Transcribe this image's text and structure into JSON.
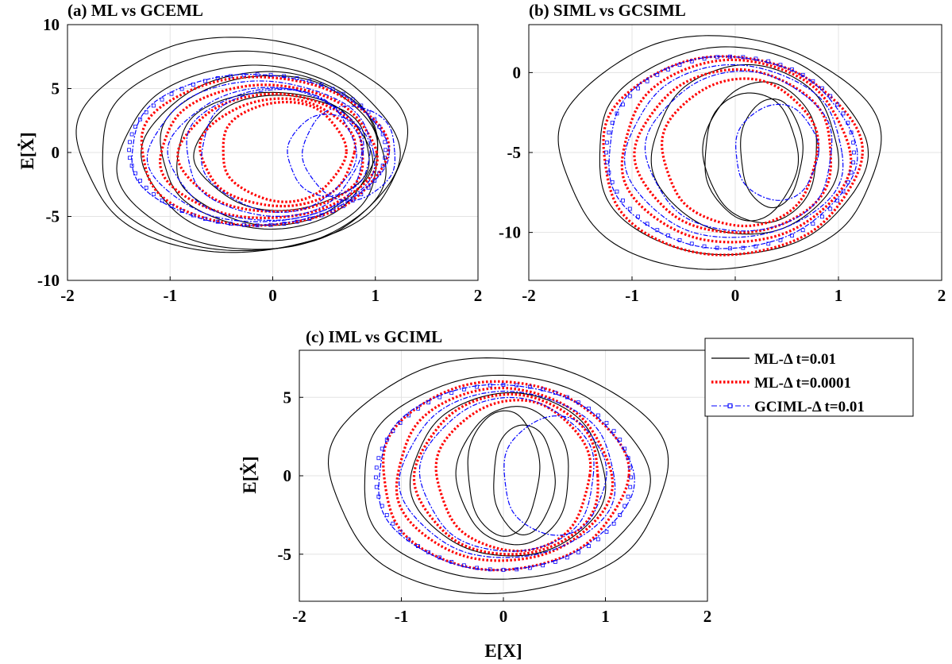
{
  "chart_data": [
    {
      "type": "line",
      "title": "(a) ML vs GCEML",
      "xlabel": "",
      "ylabel": "E[Ẋ]",
      "xlim": [
        -2,
        2
      ],
      "ylim": [
        -10,
        10
      ],
      "xticks": [
        "-2",
        "-1",
        "0",
        "1",
        "2"
      ],
      "yticks": [
        "-10",
        "-5",
        "0",
        "5",
        "10"
      ],
      "grid": true,
      "series": [
        {
          "color": "#000000",
          "style": "solid",
          "shape": "phase-portrait",
          "path": [
            {
              "cx": -0.3,
              "cy": 0.6,
              "rx": 1.6,
              "ry": 8.4
            },
            {
              "cx": -0.25,
              "cy": 0.0,
              "rx": 1.45,
              "ry": 7.8
            },
            {
              "cx": -0.2,
              "cy": -0.5,
              "rx": 1.3,
              "ry": 7.2
            },
            {
              "cx": -0.1,
              "cy": -0.3,
              "rx": 1.15,
              "ry": 6.6
            },
            {
              "cx": -0.05,
              "cy": 0.1,
              "rx": 1.05,
              "ry": 6.0
            },
            {
              "cx": 0.0,
              "cy": -0.4,
              "rx": 0.95,
              "ry": 5.2
            },
            {
              "cx": 0.1,
              "cy": 0.0,
              "rx": 0.85,
              "ry": 4.5
            }
          ]
        },
        {
          "color": "#ff0000",
          "style": "dotted",
          "shape": "phase-portrait",
          "path": [
            {
              "cx": -0.1,
              "cy": 0.1,
              "rx": 1.2,
              "ry": 5.8
            },
            {
              "cx": -0.05,
              "cy": 0.0,
              "rx": 1.05,
              "ry": 5.2
            },
            {
              "cx": 0.0,
              "cy": -0.1,
              "rx": 0.9,
              "ry": 4.6
            },
            {
              "cx": 0.05,
              "cy": 0.0,
              "rx": 0.75,
              "ry": 4.2
            },
            {
              "cx": 0.1,
              "cy": 0.1,
              "rx": 0.6,
              "ry": 3.9
            }
          ]
        },
        {
          "color": "#0000ff",
          "style": "dashdot-marker",
          "shape": "phase-portrait",
          "path": [
            {
              "cx": -0.15,
              "cy": 0.2,
              "rx": 1.25,
              "ry": 5.9
            },
            {
              "cx": -0.1,
              "cy": 0.0,
              "rx": 1.1,
              "ry": 5.5
            },
            {
              "cx": -0.05,
              "cy": -0.2,
              "rx": 0.95,
              "ry": 5.2
            },
            {
              "cx": 0.0,
              "cy": 0.0,
              "rx": 0.85,
              "ry": 5.0
            },
            {
              "cx": 0.05,
              "cy": 0.2,
              "rx": 0.75,
              "ry": 4.8
            }
          ],
          "spiral": [
            {
              "cx": 0.75,
              "cy": 0.0,
              "rx": 0.45,
              "ry": 3.7
            },
            {
              "cx": 0.55,
              "cy": -0.2,
              "rx": 0.4,
              "ry": 3.2
            }
          ]
        }
      ]
    },
    {
      "type": "line",
      "title": "(b) SIML vs GCSIML",
      "xlabel": "",
      "ylabel": "",
      "xlim": [
        -2,
        2
      ],
      "ylim": [
        -13,
        3
      ],
      "xticks": [
        "-2",
        "-1",
        "0",
        "1",
        "2"
      ],
      "yticks": [
        "-10",
        "-5",
        "0"
      ],
      "grid": true,
      "series": [
        {
          "color": "#000000",
          "style": "solid",
          "shape": "phase-portrait",
          "path": [
            {
              "cx": -0.15,
              "cy": -5.0,
              "rx": 1.55,
              "ry": 7.3
            },
            {
              "cx": -0.05,
              "cy": -5.0,
              "rx": 1.3,
              "ry": 6.5
            },
            {
              "cx": 0.1,
              "cy": -4.9,
              "rx": 0.9,
              "ry": 5.3
            },
            {
              "cx": 0.25,
              "cy": -5.0,
              "rx": 0.55,
              "ry": 4.4
            },
            {
              "cx": 0.35,
              "cy": -5.0,
              "rx": 0.3,
              "ry": 3.4
            },
            {
              "cx": 0.15,
              "cy": -5.2,
              "rx": 0.45,
              "ry": 4.0
            }
          ]
        },
        {
          "color": "#ff0000",
          "style": "dotted",
          "shape": "phase-portrait",
          "path": [
            {
              "cx": -0.05,
              "cy": -5.2,
              "rx": 1.25,
              "ry": 6.2
            },
            {
              "cx": 0.0,
              "cy": -5.0,
              "rx": 1.1,
              "ry": 5.7
            },
            {
              "cx": 0.0,
              "cy": -5.0,
              "rx": 0.95,
              "ry": 5.1
            },
            {
              "cx": 0.05,
              "cy": -5.0,
              "rx": 0.75,
              "ry": 4.6
            }
          ]
        },
        {
          "color": "#0000ff",
          "style": "dashdot-marker",
          "shape": "phase-portrait",
          "path": [
            {
              "cx": -0.05,
              "cy": -5.0,
              "rx": 1.2,
              "ry": 6.0
            },
            {
              "cx": 0.0,
              "cy": -5.0,
              "rx": 1.05,
              "ry": 5.4
            },
            {
              "cx": 0.05,
              "cy": -5.0,
              "rx": 0.9,
              "ry": 5.0
            }
          ],
          "spiral": [
            {
              "cx": 0.4,
              "cy": -5.0,
              "rx": 0.4,
              "ry": 3.0
            }
          ]
        }
      ]
    },
    {
      "type": "line",
      "title": "(c) IML vs GCIML",
      "xlabel": "E[X]",
      "ylabel": "E[Ẋ]",
      "xlim": [
        -2,
        2
      ],
      "ylim": [
        -8,
        8
      ],
      "xticks": [
        "-2",
        "-1",
        "0",
        "1",
        "2"
      ],
      "yticks": [
        "-5",
        "0",
        "5"
      ],
      "grid": true,
      "legend": {
        "placement": "top-right-outside",
        "entries": [
          {
            "label": "ML-Δ t=0.01",
            "color": "#000000",
            "style": "solid"
          },
          {
            "label": "ML-Δ t=0.0001",
            "color": "#ff0000",
            "style": "dotted"
          },
          {
            "label": "GCIML-Δ t=0.01",
            "color": "#0000ff",
            "style": "dashdot-marker"
          }
        ]
      },
      "series": [
        {
          "color": "#000000",
          "style": "solid",
          "shape": "phase-portrait",
          "path": [
            {
              "cx": -0.05,
              "cy": 0.0,
              "rx": 1.65,
              "ry": 7.5
            },
            {
              "cx": 0.0,
              "cy": -0.2,
              "rx": 1.4,
              "ry": 6.5
            },
            {
              "cx": 0.05,
              "cy": 0.0,
              "rx": 0.95,
              "ry": 5.2
            },
            {
              "cx": 0.1,
              "cy": 0.0,
              "rx": 0.55,
              "ry": 4.4
            },
            {
              "cx": 0.0,
              "cy": 0.2,
              "rx": 0.35,
              "ry": 4.0
            },
            {
              "cx": 0.2,
              "cy": -0.2,
              "rx": 0.3,
              "ry": 3.5
            }
          ]
        },
        {
          "color": "#ff0000",
          "style": "dotted",
          "shape": "phase-portrait",
          "path": [
            {
              "cx": 0.0,
              "cy": 0.0,
              "rx": 1.2,
              "ry": 6.0
            },
            {
              "cx": 0.0,
              "cy": 0.0,
              "rx": 1.05,
              "ry": 5.5
            },
            {
              "cx": 0.05,
              "cy": 0.0,
              "rx": 0.9,
              "ry": 5.1
            },
            {
              "cx": 0.1,
              "cy": 0.0,
              "rx": 0.75,
              "ry": 4.8
            }
          ]
        },
        {
          "color": "#0000ff",
          "style": "dashdot-marker",
          "shape": "phase-portrait",
          "path": [
            {
              "cx": 0.0,
              "cy": -0.1,
              "rx": 1.25,
              "ry": 5.9
            },
            {
              "cx": 0.05,
              "cy": 0.0,
              "rx": 1.05,
              "ry": 5.3
            },
            {
              "cx": 0.05,
              "cy": 0.0,
              "rx": 0.85,
              "ry": 4.9
            }
          ],
          "spiral": [
            {
              "cx": 0.5,
              "cy": 0.0,
              "rx": 0.5,
              "ry": 3.8
            }
          ]
        }
      ]
    }
  ]
}
